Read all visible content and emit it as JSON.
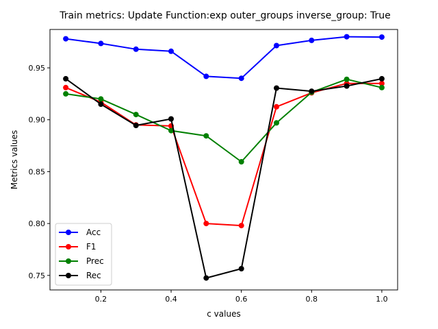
{
  "chart_data": {
    "type": "line",
    "title": "Train metrics: Update Function:exp outer_groups inverse_group: True",
    "xlabel": "c values",
    "ylabel": "Metrics values",
    "x": [
      0.1,
      0.2,
      0.3,
      0.4,
      0.5,
      0.6,
      0.7,
      0.8,
      0.9,
      1.0
    ],
    "xlim": [
      0.055,
      1.045
    ],
    "ylim": [
      0.736,
      0.987
    ],
    "xticks": [
      0.2,
      0.4,
      0.6,
      0.8,
      1.0
    ],
    "xtick_labels": [
      "0.2",
      "0.4",
      "0.6",
      "0.8",
      "1.0"
    ],
    "yticks": [
      0.75,
      0.8,
      0.85,
      0.9,
      0.95
    ],
    "ytick_labels": [
      "0.75",
      "0.80",
      "0.85",
      "0.90",
      "0.95"
    ],
    "grid": false,
    "legend_position": "lower-left",
    "series": [
      {
        "name": "Acc",
        "color": "#0000ff",
        "values": [
          0.978,
          0.9735,
          0.968,
          0.966,
          0.9418,
          0.94,
          0.9715,
          0.9765,
          0.98,
          0.9797
        ]
      },
      {
        "name": "F1",
        "color": "#ff0000",
        "values": [
          0.931,
          0.917,
          0.895,
          0.894,
          0.8,
          0.798,
          0.9125,
          0.926,
          0.935,
          0.935
        ]
      },
      {
        "name": "Prec",
        "color": "#008000",
        "values": [
          0.925,
          0.92,
          0.905,
          0.8895,
          0.8845,
          0.8595,
          0.897,
          0.9265,
          0.939,
          0.931
        ]
      },
      {
        "name": "Rec",
        "color": "#000000",
        "values": [
          0.9395,
          0.915,
          0.8945,
          0.9008,
          0.7475,
          0.7565,
          0.9305,
          0.9275,
          0.9325,
          0.9395
        ]
      }
    ]
  }
}
